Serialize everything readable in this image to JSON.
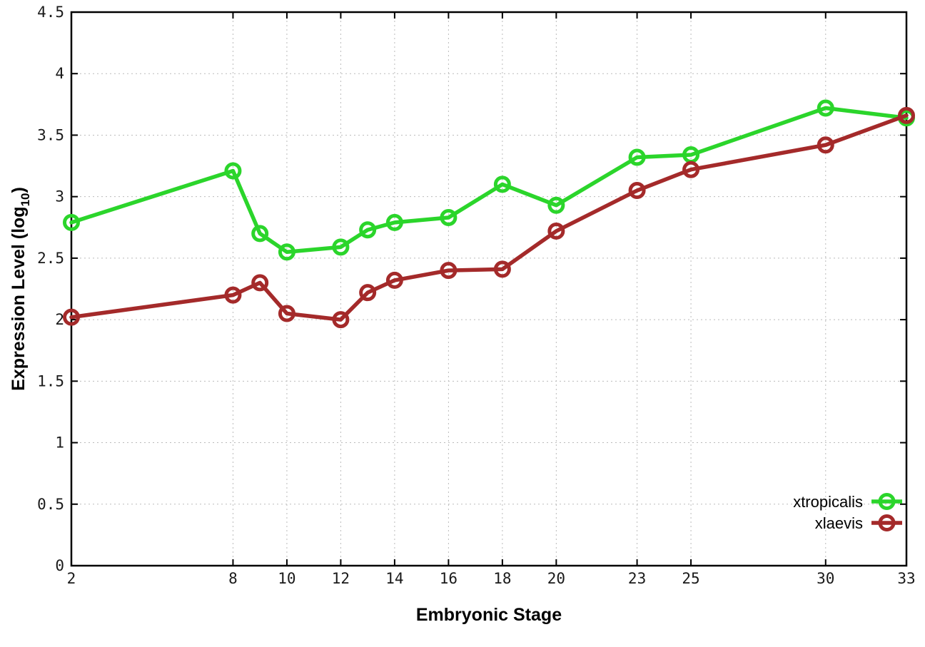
{
  "chart_data": {
    "type": "line",
    "title": "",
    "xlabel": "Embryonic Stage",
    "ylabel": {
      "main": "Expression Level (log",
      "sub": "10",
      "end": ")"
    },
    "x": [
      2,
      8,
      9,
      10,
      12,
      13,
      14,
      16,
      18,
      20,
      23,
      25,
      30,
      33
    ],
    "xtick_labels": [
      "2",
      "8",
      "10",
      "12",
      "14",
      "16",
      "18",
      "20",
      "23",
      "25",
      "30",
      "33"
    ],
    "xtick_values": [
      2,
      8,
      10,
      12,
      14,
      16,
      18,
      20,
      23,
      25,
      30,
      33
    ],
    "ytick_labels": [
      "0",
      "0.5",
      "1",
      "1.5",
      "2",
      "2.5",
      "3",
      "3.5",
      "4",
      "4.5"
    ],
    "ytick_values": [
      0,
      0.5,
      1,
      1.5,
      2,
      2.5,
      3,
      3.5,
      4,
      4.5
    ],
    "xlim": [
      2,
      33
    ],
    "ylim": [
      0,
      4.5
    ],
    "grid": true,
    "legend": {
      "position": "bottom-right-inside",
      "entries": [
        "xtropicalis",
        "xlaevis"
      ]
    },
    "series": [
      {
        "name": "xtropicalis",
        "color": "#2bd52b",
        "values": [
          2.79,
          3.21,
          2.7,
          2.55,
          2.59,
          2.73,
          2.79,
          2.83,
          3.1,
          2.93,
          3.32,
          3.34,
          3.72,
          3.64
        ]
      },
      {
        "name": "xlaevis",
        "color": "#a42a2a",
        "values": [
          2.02,
          2.2,
          2.3,
          2.05,
          2.0,
          2.22,
          2.32,
          2.4,
          2.41,
          2.72,
          3.05,
          3.22,
          3.42,
          3.66
        ]
      }
    ],
    "style": {
      "grid_color": "#bbbbbb",
      "axis_color": "#000000",
      "tick_label_color": "#1a1a1a",
      "marker": "open-circle",
      "line_width": 5.5,
      "marker_radius": 9.5,
      "marker_stroke": 5
    }
  }
}
